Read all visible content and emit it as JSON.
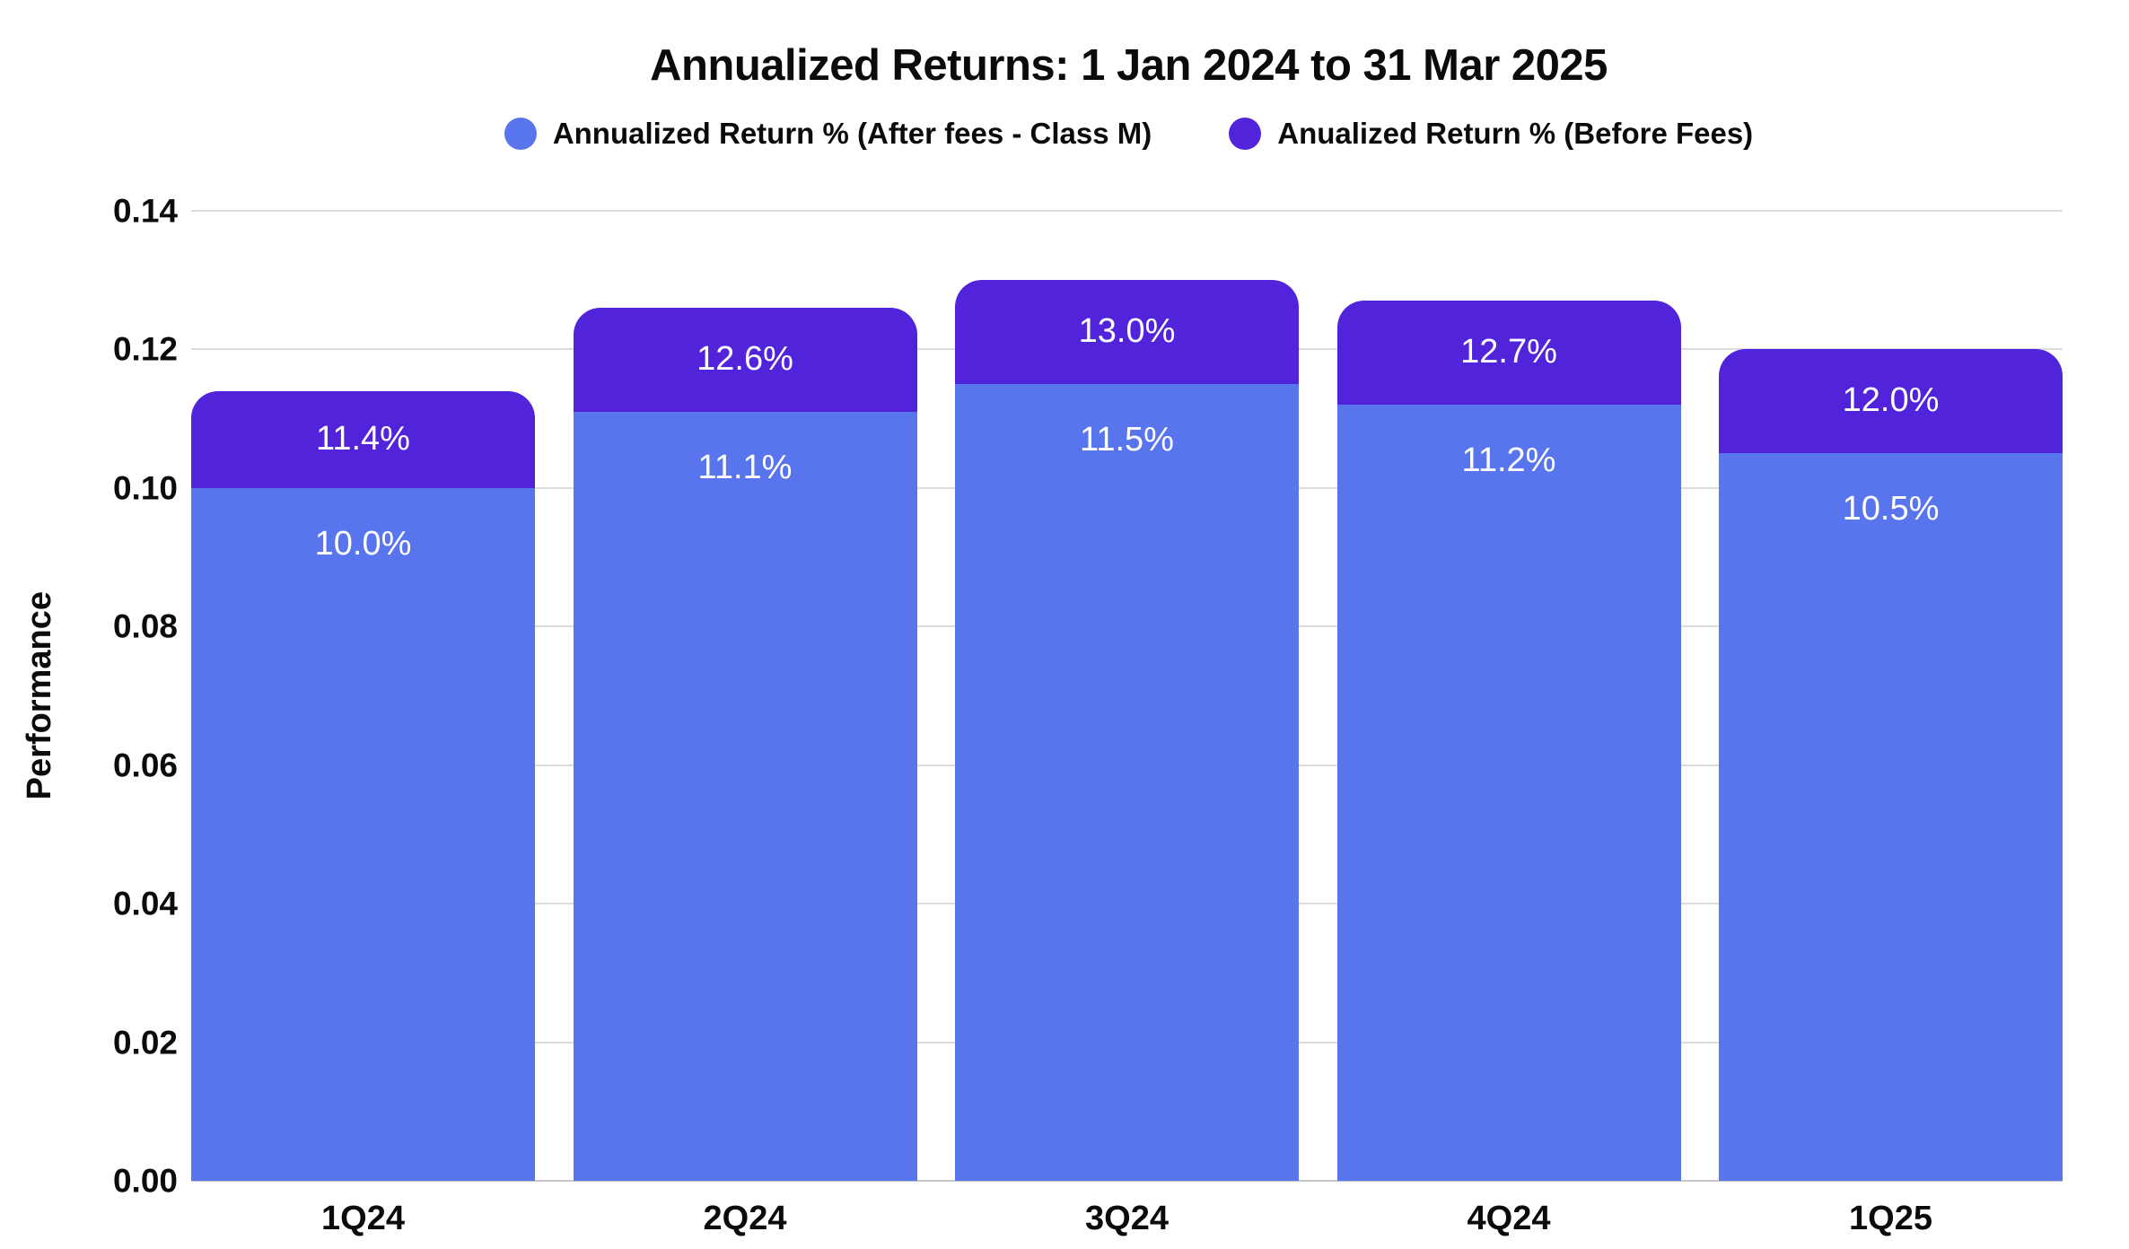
{
  "title": "Annualized Returns: 1 Jan 2024 to 31 Mar 2025",
  "legend": [
    {
      "label": "Annualized Return % (After fees - Class M)",
      "color": "#5875EE"
    },
    {
      "label": "Anualized Return % (Before Fees)",
      "color": "#5124DB"
    }
  ],
  "colors": {
    "after_fees_blue": "#5875EE",
    "before_fees_purple": "#5124DB",
    "gridline": "#DDDDDD",
    "baseline": "#C6C6C6",
    "axis_text": "#0B0B0B",
    "bar_label_text": "#FFFFFF",
    "background": "#FFFFFF"
  },
  "chart_data": {
    "type": "bar",
    "subtype": "overlaid-range-bar",
    "title": "Annualized Returns: 1 Jan 2024 to 31 Mar 2025",
    "xlabel": "",
    "ylabel": "Performance",
    "ylim": [
      0,
      0.14
    ],
    "yticks": [
      0.0,
      0.02,
      0.04,
      0.06,
      0.08,
      0.1,
      0.12,
      0.14
    ],
    "ytick_labels": [
      "0.00",
      "0.02",
      "0.04",
      "0.06",
      "0.08",
      "0.10",
      "0.12",
      "0.14"
    ],
    "grid": true,
    "legend_position": "top",
    "categories": [
      "1Q24",
      "2Q24",
      "3Q24",
      "4Q24",
      "1Q25"
    ],
    "series": [
      {
        "name": "Annualized Return % (After fees - Class M)",
        "color": "#5875EE",
        "values": [
          0.1,
          0.111,
          0.115,
          0.112,
          0.105
        ],
        "labels": [
          "10.0%",
          "11.1%",
          "11.5%",
          "11.2%",
          "10.5%"
        ]
      },
      {
        "name": "Anualized Return % (Before Fees)",
        "color": "#5124DB",
        "values": [
          0.114,
          0.126,
          0.13,
          0.127,
          0.12
        ],
        "labels": [
          "11.4%",
          "12.6%",
          "13.0%",
          "12.7%",
          "12.0%"
        ]
      }
    ]
  }
}
